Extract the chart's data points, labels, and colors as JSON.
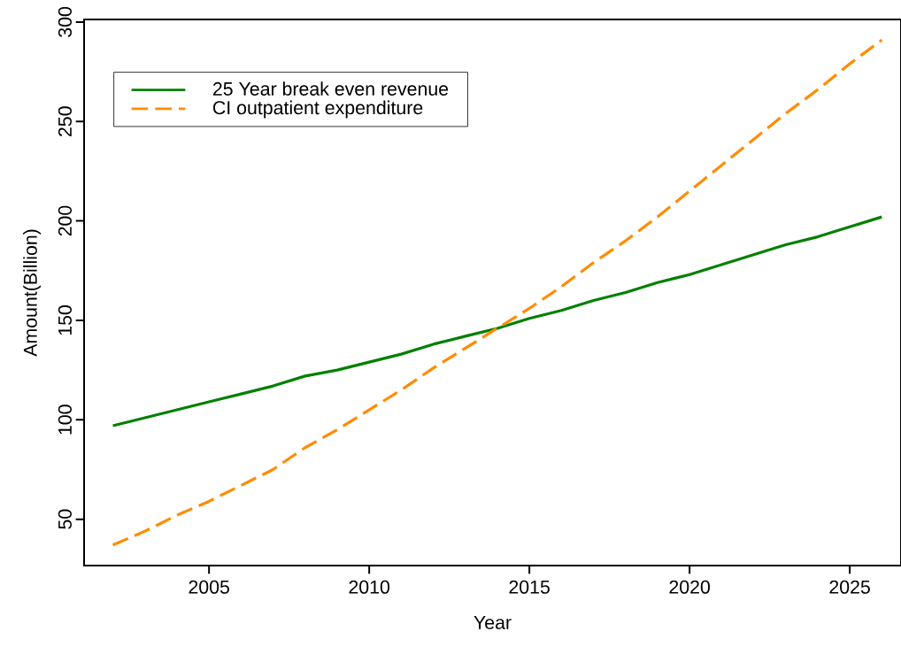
{
  "chart_data": {
    "type": "line",
    "xlabel": "Year",
    "ylabel": "Amount(Billion)",
    "x": [
      2002,
      2003,
      2004,
      2005,
      2006,
      2007,
      2008,
      2009,
      2010,
      2011,
      2012,
      2013,
      2014,
      2015,
      2016,
      2017,
      2018,
      2019,
      2020,
      2021,
      2022,
      2023,
      2024,
      2025,
      2026
    ],
    "series": [
      {
        "name": "25 Year break even revenue",
        "color": "#008000",
        "line_style": "solid",
        "values": [
          97,
          101,
          105,
          109,
          113,
          117,
          122,
          125,
          129,
          133,
          138,
          142,
          146,
          151,
          155,
          160,
          164,
          169,
          173,
          178,
          183,
          188,
          192,
          197,
          202
        ]
      },
      {
        "name": "CI outpatient expenditure",
        "color": "#ff8c00",
        "line_style": "dashed",
        "values": [
          37,
          44,
          52,
          59,
          67,
          75,
          86,
          95,
          105,
          115,
          126,
          136,
          146,
          156,
          167,
          179,
          190,
          202,
          215,
          228,
          241,
          254,
          266,
          279,
          291
        ]
      }
    ],
    "xlim": [
      2001.1,
      2026.6
    ],
    "ylim": [
      26.7,
      301.3
    ],
    "xticks": [
      2005,
      2010,
      2015,
      2020,
      2025
    ],
    "yticks": [
      50,
      100,
      150,
      200,
      250,
      300
    ],
    "legend": "top left",
    "grid": false,
    "marker": "none"
  }
}
